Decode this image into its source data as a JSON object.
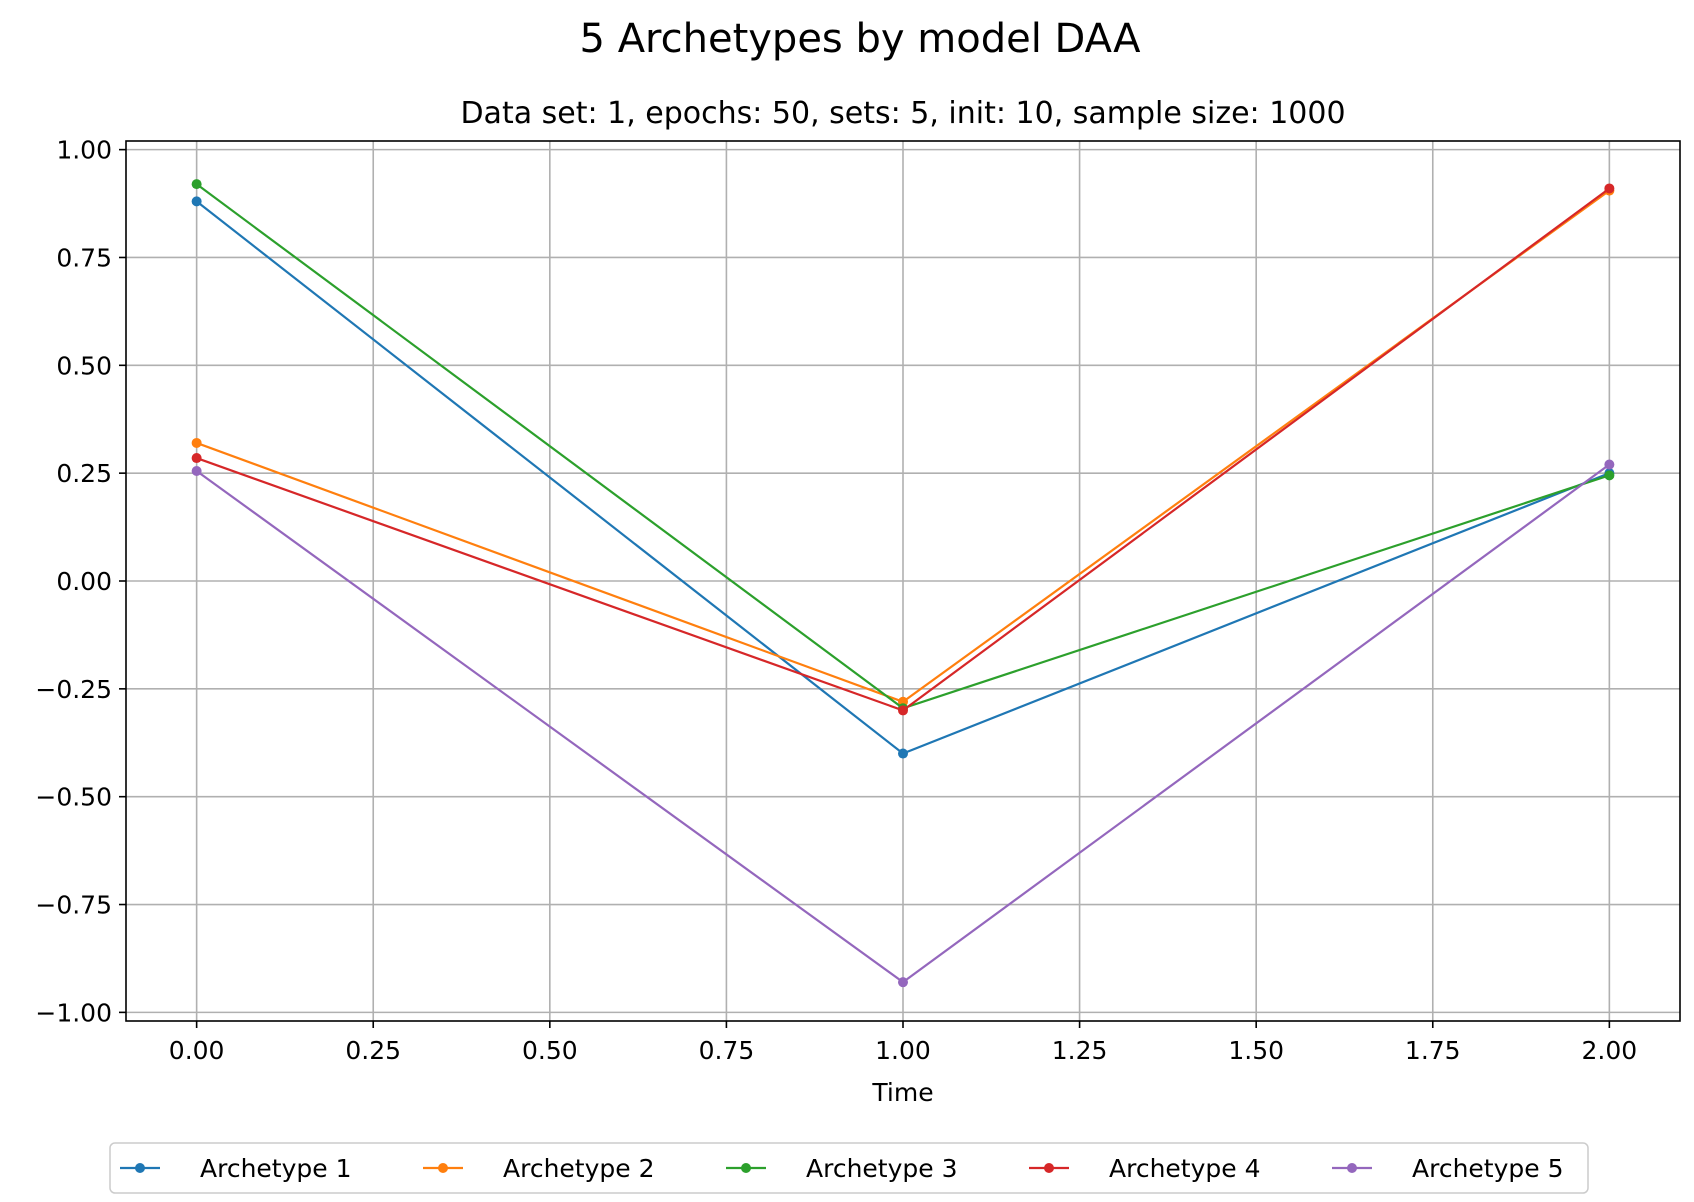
{
  "chart_data": {
    "type": "line",
    "title": "5 Archetypes by model DAA",
    "subtitle": "Data set: 1, epochs: 50, sets: 5, init: 10, sample size: 1000",
    "xlabel": "Time",
    "ylabel": "",
    "x": [
      0,
      1,
      2
    ],
    "xlim": [
      -0.1,
      2.1
    ],
    "ylim": [
      -1.02,
      1.02
    ],
    "x_ticks": [
      "0.00",
      "0.25",
      "0.50",
      "0.75",
      "1.00",
      "1.25",
      "1.50",
      "1.75",
      "2.00"
    ],
    "y_ticks": [
      "−1.00",
      "−0.75",
      "−0.50",
      "−0.25",
      "0.00",
      "0.25",
      "0.50",
      "0.75",
      "1.00"
    ],
    "grid": true,
    "legend_position": "bottom",
    "series": [
      {
        "name": "Archetype 1",
        "color": "#1f77b4",
        "values": [
          0.88,
          -0.4,
          0.25
        ]
      },
      {
        "name": "Archetype 2",
        "color": "#ff7f0e",
        "values": [
          0.32,
          -0.28,
          0.905
        ]
      },
      {
        "name": "Archetype 3",
        "color": "#2ca02c",
        "values": [
          0.92,
          -0.295,
          0.245
        ]
      },
      {
        "name": "Archetype 4",
        "color": "#d62728",
        "values": [
          0.285,
          -0.3,
          0.91
        ]
      },
      {
        "name": "Archetype 5",
        "color": "#9467bd",
        "values": [
          0.255,
          -0.93,
          0.27
        ]
      }
    ]
  }
}
